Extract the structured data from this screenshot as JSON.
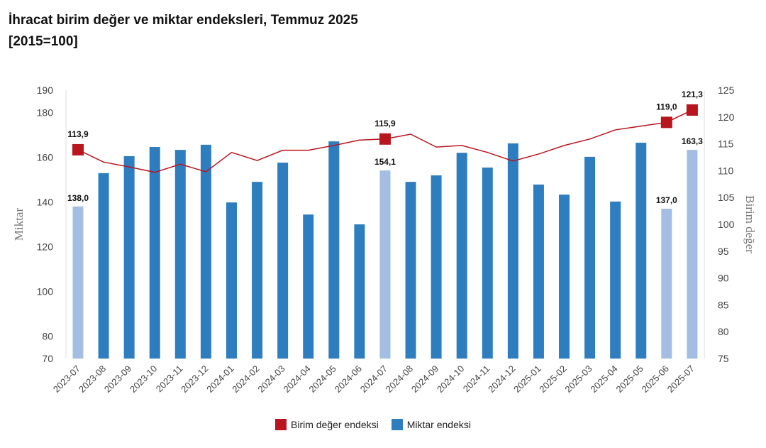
{
  "title": "İhracat birim değer ve miktar endeksleri, Temmuz 2025",
  "subtitle": "[2015=100]",
  "chart_data": {
    "type": "bar+line",
    "categories": [
      "2023-07",
      "2023-08",
      "2023-09",
      "2023-10",
      "2023-11",
      "2023-12",
      "2024-01",
      "2024-02",
      "2024-03",
      "2024-04",
      "2024-05",
      "2024-06",
      "2024-07",
      "2024-08",
      "2024-09",
      "2024-10",
      "2024-11",
      "2024-12",
      "2025-01",
      "2025-02",
      "2025-03",
      "2025-04",
      "2025-05",
      "2025-06",
      "2025-07"
    ],
    "series": [
      {
        "name": "Miktar endeksi",
        "type": "bar",
        "axis": "left",
        "color": "#2e7ebf",
        "highlight_color": "#a3bde3",
        "values": [
          138.0,
          152.9,
          160.5,
          164.6,
          163.3,
          165.6,
          139.8,
          149.0,
          157.6,
          134.4,
          167.1,
          130.0,
          154.1,
          149.0,
          151.9,
          162.0,
          155.4,
          166.2,
          147.8,
          143.3,
          160.2,
          140.2,
          166.5,
          137.0,
          163.3
        ],
        "highlighted": [
          "2023-07",
          "2024-07",
          "2025-06",
          "2025-07"
        ],
        "labels": {
          "2023-07": "138,0",
          "2024-07": "154,1",
          "2025-06": "137,0",
          "2025-07": "163,3"
        }
      },
      {
        "name": "Birim değer endeksi",
        "type": "line",
        "axis": "right",
        "color": "#b8151f",
        "values": [
          113.9,
          111.6,
          110.7,
          109.7,
          111.2,
          109.8,
          113.4,
          111.9,
          113.8,
          113.8,
          114.7,
          115.7,
          115.9,
          116.8,
          114.4,
          114.7,
          113.4,
          111.8,
          113.1,
          114.7,
          115.9,
          117.6,
          118.3,
          119.0,
          121.3
        ],
        "labels": {
          "2023-07": "113,9",
          "2024-07": "115,9",
          "2025-06": "119,0",
          "2025-07": "121,3"
        }
      }
    ],
    "ylabel": "Miktar",
    "ylabel_right": "Birim değer",
    "ylim": [
      70,
      190
    ],
    "yticks": [
      70,
      80,
      100,
      120,
      140,
      160,
      180,
      190
    ],
    "ylim_right": [
      75,
      125
    ],
    "yticks_right": [
      75,
      80,
      85,
      90,
      95,
      100,
      105,
      110,
      115,
      120,
      125
    ],
    "grid": false,
    "legend_position": "bottom"
  }
}
